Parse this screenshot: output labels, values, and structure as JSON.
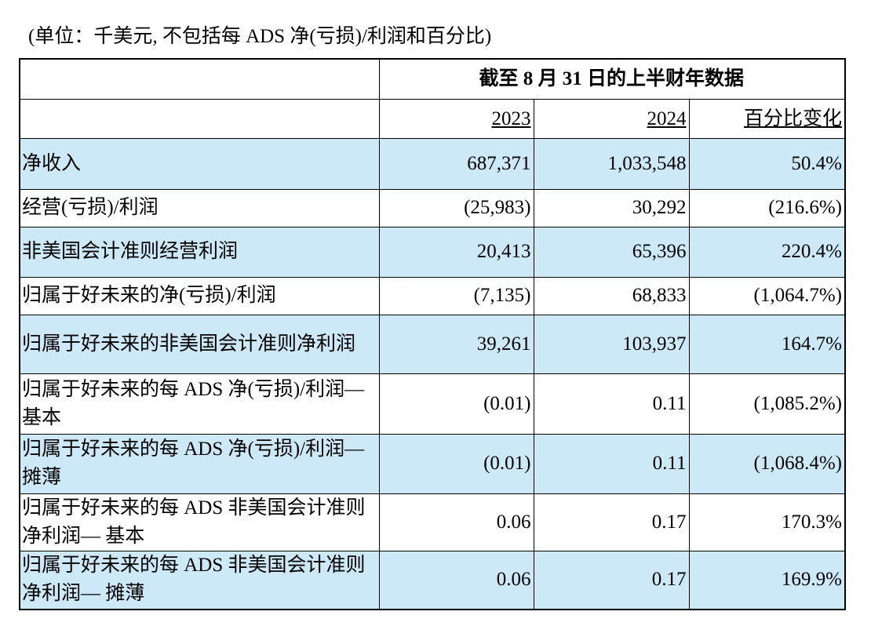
{
  "caption": "(单位：千美元, 不包括每 ADS 净(亏损)/利润和百分比)",
  "table": {
    "group_header": "截至 8 月 31 日的上半财年数据",
    "columns": [
      "2023",
      "2024",
      "百分比变化"
    ],
    "rows": [
      [
        "净收入",
        "687,371",
        "1,033,548",
        "50.4%"
      ],
      [
        "经营(亏损)/利润",
        "(25,983)",
        "30,292",
        "(216.6%)"
      ],
      [
        "非美国会计准则经营利润",
        "20,413",
        "65,396",
        "220.4%"
      ],
      [
        "归属于好未来的净(亏损)/利润",
        "(7,135)",
        "68,833",
        "(1,064.7%)"
      ],
      [
        "归属于好未来的非美国会计准则净利润",
        "39,261",
        "103,937",
        "164.7%"
      ],
      [
        "归属于好未来的每 ADS 净(亏损)/利润— 基本",
        "(0.01)",
        "0.11",
        "(1,085.2%)"
      ],
      [
        "归属于好未来的每 ADS 净(亏损)/利润— 摊薄",
        "(0.01)",
        "0.11",
        "(1,068.4%)"
      ],
      [
        "归属于好未来的每 ADS 非美国会计准则净利润— 基本",
        "0.06",
        "0.17",
        "170.3%"
      ],
      [
        "归属于好未来的每 ADS 非美国会计准则净利润— 摊薄",
        "0.06",
        "0.17",
        "169.9%"
      ]
    ]
  }
}
